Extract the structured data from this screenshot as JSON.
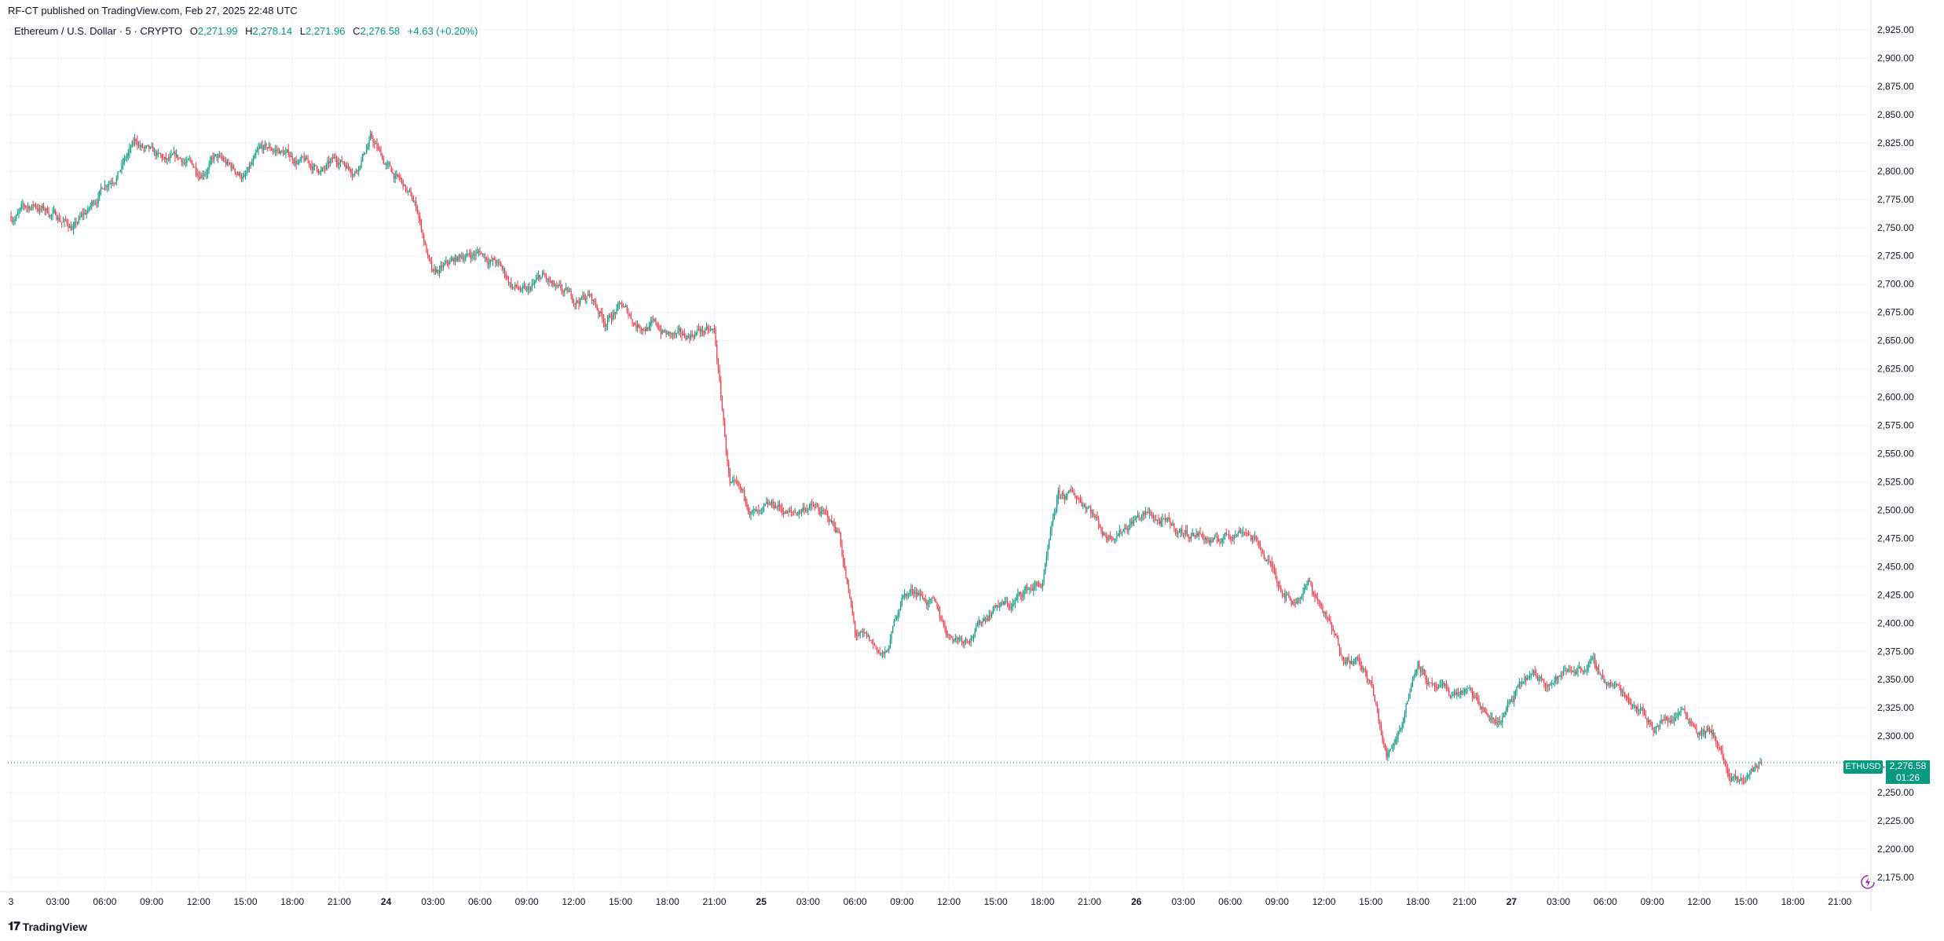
{
  "header": {
    "published": "RF-CT published on TradingView.com, Feb 27, 2025 22:48 UTC"
  },
  "legend": {
    "symbol": "Ethereum / U.S. Dollar · 5 · CRYPTO",
    "o_label": "O",
    "o_value": "2,271.99",
    "h_label": "H",
    "h_value": "2,278.14",
    "l_label": "L",
    "l_value": "2,271.96",
    "c_label": "C",
    "c_value": "2,276.58",
    "change": "+4.63 (+0.20%)"
  },
  "price_tag": {
    "symbol": "ETHUSD",
    "price": "2,276.58",
    "countdown": "01:26"
  },
  "brand": {
    "name": "TradingView"
  },
  "colors": {
    "up": "#089981",
    "down": "#f23645",
    "grid": "#f0f3fa",
    "text": "#131722",
    "accent_icon": "#9c27b0"
  },
  "chart_data": {
    "type": "candlestick",
    "y_axis": {
      "min": 2162.5,
      "max": 2937.5,
      "ticks": [
        2175,
        2200,
        2225,
        2250,
        2275,
        2300,
        2325,
        2350,
        2375,
        2400,
        2425,
        2450,
        2475,
        2500,
        2525,
        2550,
        2575,
        2600,
        2625,
        2650,
        2675,
        2700,
        2725,
        2750,
        2775,
        2800,
        2825,
        2850,
        2875,
        2900,
        2925
      ],
      "tick_labels": [
        "2,175.00",
        "2,200.00",
        "2,225.00",
        "2,250.00",
        "2,275.00",
        "2,300.00",
        "2,325.00",
        "2,350.00",
        "2,375.00",
        "2,400.00",
        "2,425.00",
        "2,450.00",
        "2,475.00",
        "2,500.00",
        "2,525.00",
        "2,550.00",
        "2,575.00",
        "2,600.00",
        "2,625.00",
        "2,650.00",
        "2,675.00",
        "2,700.00",
        "2,725.00",
        "2,750.00",
        "2,775.00",
        "2,800.00",
        "2,825.00",
        "2,850.00",
        "2,875.00",
        "2,900.00",
        "2,925.00"
      ]
    },
    "x_axis": {
      "tick_labels": [
        "3",
        "03:00",
        "06:00",
        "09:00",
        "12:00",
        "15:00",
        "18:00",
        "21:00",
        "24",
        "03:00",
        "06:00",
        "09:00",
        "12:00",
        "15:00",
        "18:00",
        "21:00",
        "25",
        "03:00",
        "06:00",
        "09:00",
        "12:00",
        "15:00",
        "18:00",
        "21:00",
        "26",
        "03:00",
        "06:00",
        "09:00",
        "12:00",
        "15:00",
        "18:00",
        "21:00",
        "27",
        "03:00",
        "06:00",
        "09:00",
        "12:00",
        "15:00",
        "18:00",
        "21:00"
      ],
      "bold_labels": [
        "24",
        "25",
        "26",
        "27"
      ]
    },
    "grid": true,
    "current_price": 2276.58,
    "series": [
      [
        0,
        2760
      ],
      [
        1.5,
        2770
      ],
      [
        3,
        2760
      ],
      [
        4,
        2750
      ],
      [
        5,
        2765
      ],
      [
        6,
        2790
      ],
      [
        7,
        2805
      ],
      [
        8,
        2825
      ],
      [
        9,
        2812
      ],
      [
        10,
        2805
      ],
      [
        11,
        2808
      ],
      [
        12,
        2800
      ],
      [
        13,
        2812
      ],
      [
        14,
        2802
      ],
      [
        15,
        2795
      ],
      [
        16,
        2815
      ],
      [
        17,
        2818
      ],
      [
        18,
        2812
      ],
      [
        19,
        2805
      ],
      [
        20,
        2800
      ],
      [
        21,
        2810
      ],
      [
        22,
        2803
      ],
      [
        23,
        2830
      ],
      [
        24,
        2805
      ],
      [
        25,
        2788
      ],
      [
        26,
        2765
      ],
      [
        27,
        2705
      ],
      [
        28,
        2715
      ],
      [
        29,
        2725
      ],
      [
        30,
        2728
      ],
      [
        31,
        2720
      ],
      [
        32,
        2700
      ],
      [
        33,
        2690
      ],
      [
        34,
        2705
      ],
      [
        35,
        2690
      ],
      [
        36,
        2685
      ],
      [
        37,
        2690
      ],
      [
        38,
        2668
      ],
      [
        39,
        2680
      ],
      [
        40,
        2665
      ],
      [
        41,
        2665
      ],
      [
        42,
        2655
      ],
      [
        43,
        2650
      ],
      [
        44,
        2660
      ],
      [
        45,
        2655
      ],
      [
        46,
        2520
      ],
      [
        47,
        2505
      ],
      [
        48,
        2492
      ],
      [
        49,
        2502
      ],
      [
        50,
        2495
      ],
      [
        51,
        2505
      ],
      [
        52,
        2495
      ],
      [
        53,
        2480
      ],
      [
        54,
        2390
      ],
      [
        55,
        2380
      ],
      [
        56,
        2370
      ],
      [
        57,
        2425
      ],
      [
        58,
        2430
      ],
      [
        59,
        2415
      ],
      [
        60,
        2390
      ],
      [
        61,
        2388
      ],
      [
        62,
        2400
      ],
      [
        63,
        2418
      ],
      [
        64,
        2415
      ],
      [
        65,
        2430
      ],
      [
        66,
        2435
      ],
      [
        67,
        2510
      ],
      [
        68,
        2512
      ],
      [
        69,
        2505
      ],
      [
        70,
        2478
      ],
      [
        71,
        2485
      ],
      [
        72,
        2495
      ],
      [
        73,
        2495
      ],
      [
        74,
        2485
      ],
      [
        75,
        2480
      ],
      [
        76,
        2480
      ],
      [
        77,
        2470
      ],
      [
        78,
        2480
      ],
      [
        79,
        2485
      ],
      [
        80,
        2465
      ],
      [
        81,
        2440
      ],
      [
        82,
        2420
      ],
      [
        83,
        2435
      ],
      [
        84,
        2410
      ],
      [
        85,
        2375
      ],
      [
        86,
        2370
      ],
      [
        87,
        2345
      ],
      [
        88,
        2280
      ],
      [
        89,
        2315
      ],
      [
        90,
        2370
      ],
      [
        91,
        2340
      ],
      [
        92,
        2335
      ],
      [
        93,
        2340
      ],
      [
        94,
        2325
      ],
      [
        95,
        2310
      ],
      [
        96,
        2330
      ],
      [
        97,
        2350
      ],
      [
        98,
        2350
      ],
      [
        99,
        2352
      ],
      [
        100,
        2360
      ],
      [
        101,
        2365
      ],
      [
        102,
        2350
      ],
      [
        103,
        2340
      ],
      [
        104,
        2330
      ],
      [
        105,
        2310
      ],
      [
        106,
        2315
      ],
      [
        107,
        2325
      ],
      [
        108,
        2308
      ],
      [
        109,
        2300
      ],
      [
        110,
        2260
      ],
      [
        110.6,
        2255
      ],
      [
        111.1,
        2265
      ],
      [
        111.6,
        2272
      ],
      [
        112,
        2276.58
      ]
    ]
  }
}
